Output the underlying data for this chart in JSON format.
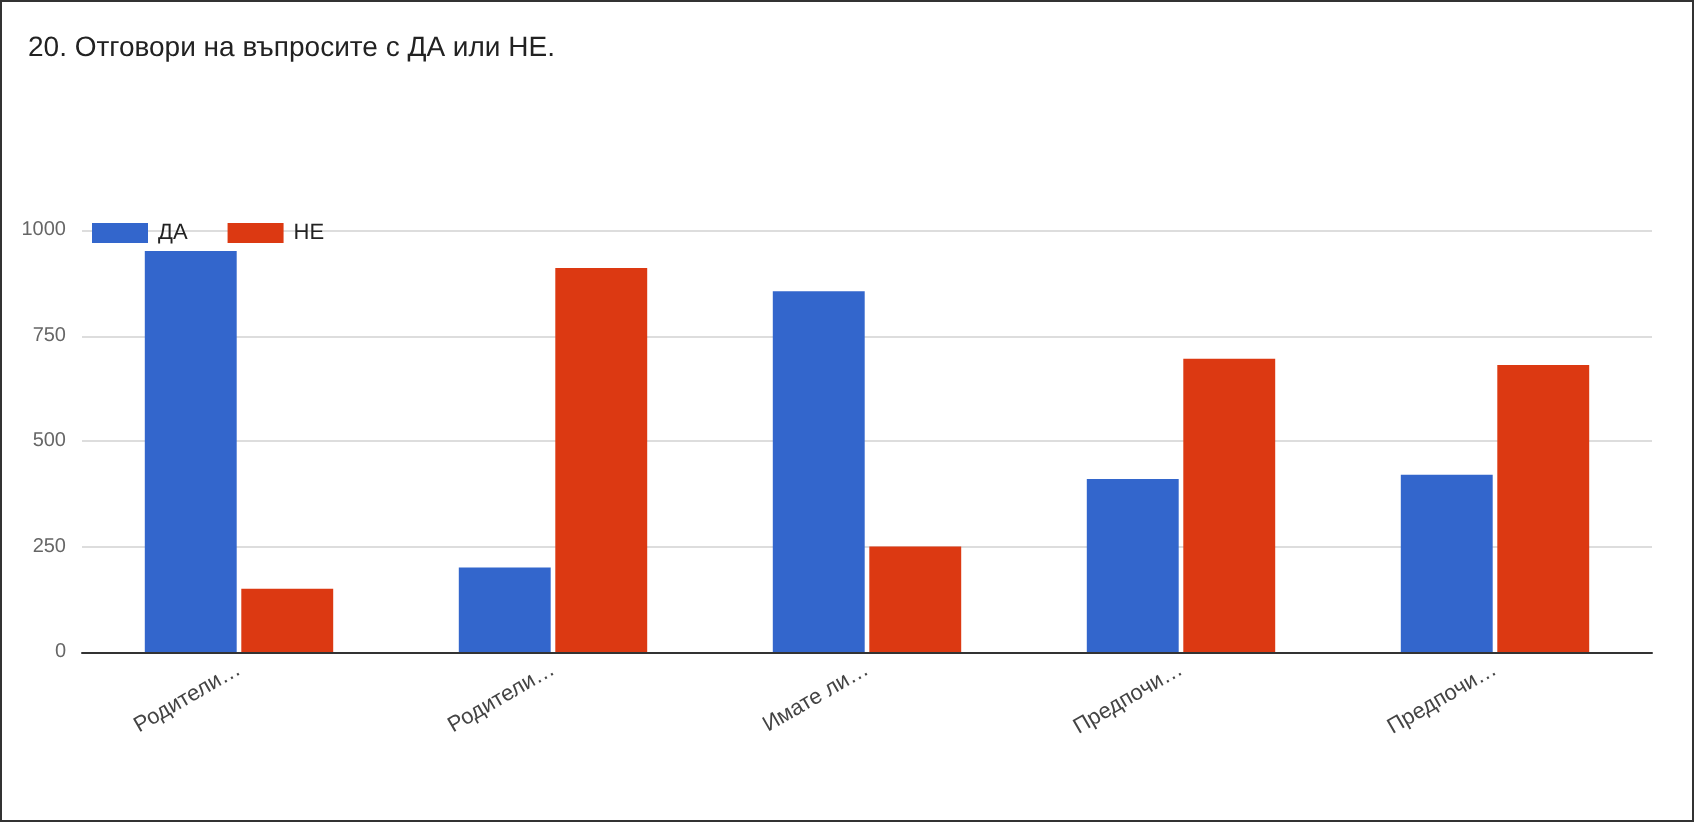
{
  "chart_data": {
    "type": "bar",
    "title": "20. Отговори на въпросите с ДА или НЕ.",
    "categories": [
      "Родители…",
      "Родители…",
      "Имате ли…",
      "Предпочи…",
      "Предпочи…"
    ],
    "series": [
      {
        "name": "ДА",
        "color": "#3366cc",
        "values": [
          950,
          200,
          855,
          410,
          420
        ]
      },
      {
        "name": "НЕ",
        "color": "#dc3912",
        "values": [
          150,
          910,
          250,
          695,
          680
        ]
      }
    ],
    "ylim": [
      0,
      1000
    ],
    "yticks": [
      0,
      250,
      500,
      750,
      1000
    ],
    "grid": "y",
    "legend": "top left"
  }
}
